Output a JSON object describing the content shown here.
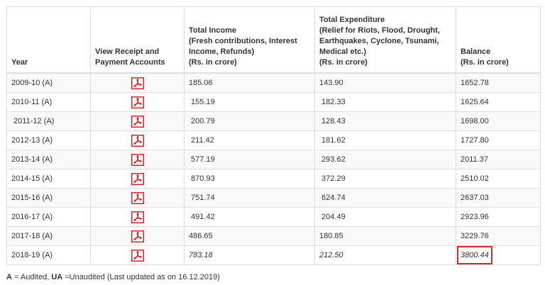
{
  "table": {
    "headers": {
      "year": "Year",
      "view": [
        "View Receipt and",
        "Payment Accounts"
      ],
      "income": [
        "Total Income",
        "(Fresh contributions, Interest",
        "Income, Refunds)",
        "(Rs. in crore)"
      ],
      "expenditure": [
        "Total Expenditure",
        "(Relief for Riots, Flood, Drought,",
        "Earthquakes, Cyclone, Tsunami,",
        "Medical etc.)",
        "(Rs. in crore)"
      ],
      "balance": [
        "Balance",
        "(Rs. in crore)"
      ]
    },
    "rows": [
      {
        "year": "2009-10 (A)",
        "income": "185.06",
        "expenditure": "143.90",
        "balance": "1652.78",
        "icon": "pdf-icon"
      },
      {
        "year": "2010-11 (A)",
        "income": " 155.19",
        "expenditure": " 182.33",
        "balance": "1625.64",
        "icon": "pdf-icon"
      },
      {
        "year": " 2011-12 (A)",
        "income": " 200.79",
        "expenditure": " 128.43",
        "balance": "1698.00",
        "icon": "pdf-icon"
      },
      {
        "year": "2012-13 (A)",
        "income": " 211.42",
        "expenditure": " 181.62",
        "balance": "1727.80",
        "icon": "pdf-icon"
      },
      {
        "year": "2013-14 (A)",
        "income": " 577.19",
        "expenditure": " 293.62",
        "balance": "2011.37",
        "icon": "pdf-icon"
      },
      {
        "year": "2014-15 (A)",
        "income": " 870.93",
        "expenditure": " 372.29",
        "balance": "2510.02",
        "icon": "pdf-icon"
      },
      {
        "year": "2015-16 (A)",
        "income": " 751.74",
        "expenditure": " 624.74",
        "balance": "2637.03",
        "icon": "pdf-icon"
      },
      {
        "year": "2016-17 (A)",
        "income": " 491.42",
        "expenditure": " 204.49",
        "balance": "2923.96",
        "icon": "pdf-icon"
      },
      {
        "year": "2017-18 (A)",
        "income": "486.65",
        "expenditure": "180.85",
        "balance": "3229.76",
        "icon": "pdf-icon"
      },
      {
        "year": "2018-19 (A)",
        "income": "783.18",
        "expenditure": "212.50",
        "balance": "3800.44",
        "icon": "pdf-icon",
        "italic": true,
        "highlight_balance": true
      }
    ]
  },
  "footnote": {
    "a_key": "A",
    "a_text": " = Audited, ",
    "ua_key": "UA",
    "ua_text": " =Unaudited (Last updated as on  16.12.2019)"
  },
  "colors": {
    "pdf_icon": "#d9262b",
    "highlight_border": "#d9262b",
    "border": "#dddddd",
    "stripe": "#f9f9f9"
  }
}
